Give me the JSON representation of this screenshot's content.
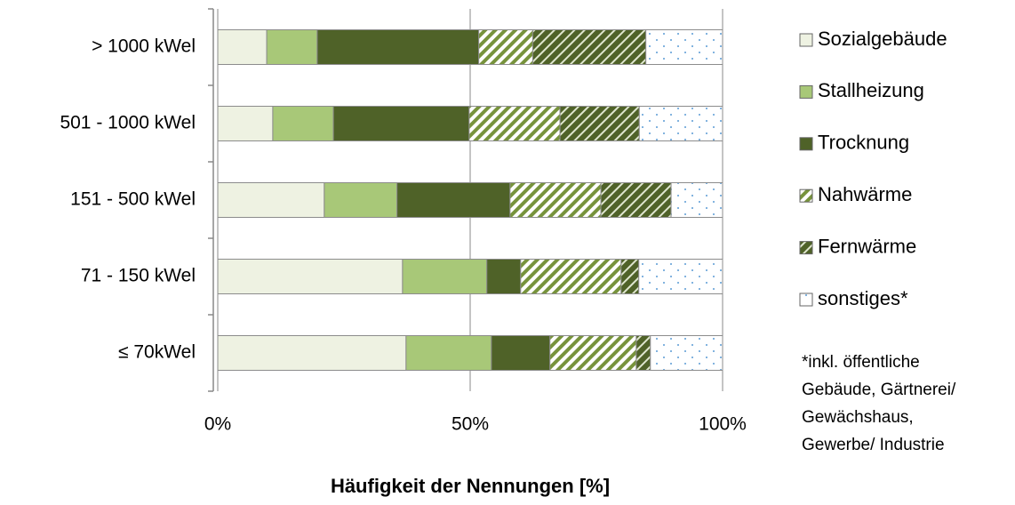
{
  "chart_data": {
    "type": "stacked-barh",
    "categories": [
      "> 1000 kWel",
      "501 - 1000 kWel",
      "151 - 500 kWel",
      "71 - 150 kWel",
      "≤ 70kWel"
    ],
    "series": [
      {
        "name": "Sozialgebäude",
        "color": "#eef2e2",
        "fill_style": "solid",
        "values": [
          9.7,
          10.9,
          21.1,
          36.6,
          37.3
        ]
      },
      {
        "name": "Stallheizung",
        "color": "#a8c878",
        "fill_style": "solid",
        "values": [
          10.0,
          12.0,
          14.4,
          16.7,
          16.9
        ]
      },
      {
        "name": "Trocknung",
        "color": "#4f6228",
        "fill_style": "solid",
        "values": [
          32.0,
          26.9,
          22.4,
          6.7,
          11.6
        ]
      },
      {
        "name": "Nahwärme",
        "color": "#77933c",
        "fill_style": "hatch",
        "values": [
          10.7,
          18.0,
          18.0,
          19.9,
          17.1
        ]
      },
      {
        "name": "Fernwärme",
        "color": "#4f6228",
        "fill_style": "hatch-dark",
        "values": [
          22.4,
          15.7,
          13.9,
          3.5,
          2.8
        ]
      },
      {
        "name": "sonstiges*",
        "color": "#5b9bd5",
        "fill_style": "dots",
        "values": [
          15.2,
          16.5,
          10.2,
          16.6,
          14.3
        ]
      }
    ],
    "xlim": [
      0,
      100
    ],
    "xticks": [
      {
        "value": 0,
        "label": "0%"
      },
      {
        "value": 50,
        "label": "50%"
      },
      {
        "value": 100,
        "label": "100%"
      }
    ],
    "grid": true,
    "xlabel": "Häufigkeit der Nennungen [%]",
    "legend": "right",
    "note": [
      "*inkl. öffentliche",
      "Gebäude, Gärtnerei/",
      "Gewächshaus,",
      "Gewerbe/ Industrie"
    ]
  }
}
